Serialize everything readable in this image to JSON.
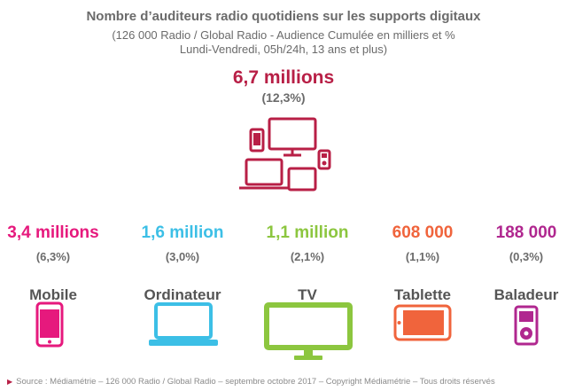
{
  "title": "Nombre d’auditeurs radio quotidiens sur les supports digitaux",
  "subtitle_line1": "(126 000 Radio / Global Radio - Audience Cumulée en milliers et %",
  "subtitle_line2": "Lundi-Vendredi, 05h/24h, 13 ans et plus)",
  "total": {
    "value_label": "6,7 millions",
    "pct_label": "(12,3%)",
    "color": "#b81f46",
    "icon": "multi-device-icon"
  },
  "chart_data": {
    "type": "table",
    "title": "Nombre d’auditeurs radio quotidiens sur les supports digitaux",
    "unit": "milliers",
    "total": {
      "label": "6,7 millions",
      "value": 6700,
      "percent": 12.3
    },
    "categories": [
      "Mobile",
      "Ordinateur",
      "TV",
      "Tablette",
      "Baladeur"
    ],
    "values": [
      3400,
      1600,
      1100,
      608,
      188
    ],
    "percents": [
      6.3,
      3.0,
      2.1,
      1.1,
      0.3
    ]
  },
  "items": [
    {
      "name": "Mobile",
      "value_label": "3,4 millions",
      "pct_label": "(6,3%)",
      "color": "#e6197d",
      "icon": "mobile-phone-icon"
    },
    {
      "name": "Ordinateur",
      "value_label": "1,6 million",
      "pct_label": "(3,0%)",
      "color": "#3cbfe6",
      "icon": "laptop-icon"
    },
    {
      "name": "TV",
      "value_label": "1,1 million",
      "pct_label": "(2,1%)",
      "color": "#8cc63f",
      "icon": "tv-icon"
    },
    {
      "name": "Tablette",
      "value_label": "608 000",
      "pct_label": "(1,1%)",
      "color": "#f0643c",
      "icon": "tablet-icon"
    },
    {
      "name": "Baladeur",
      "value_label": "188 000",
      "pct_label": "(0,3%)",
      "color": "#b0278f",
      "icon": "music-player-icon"
    }
  ],
  "source": "Source : Médiamétrie –  126 000 Radio / Global Radio – septembre octobre 2017 – Copyright Médiamétrie – Tous droits réservés"
}
